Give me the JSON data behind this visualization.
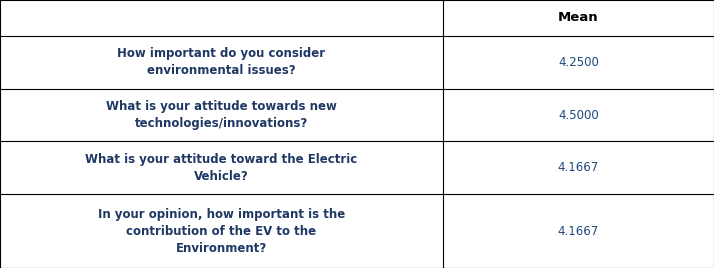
{
  "col_header": "Mean",
  "rows": [
    {
      "question": "How important do you consider\nenvironmental issues?",
      "mean": "4.2500"
    },
    {
      "question": "What is your attitude towards new\ntechnologies/innovations?",
      "mean": "4.5000"
    },
    {
      "question": "What is your attitude toward the Electric\nVehicle?",
      "mean": "4.1667"
    },
    {
      "question": "In your opinion, how important is the\ncontribution of the EV to the\nEnvironment?",
      "mean": "4.1667"
    }
  ],
  "col_split": 0.62,
  "text_color_question": "#1F3864",
  "text_color_mean": "#1F497D",
  "header_text_color": "#000000",
  "border_color": "#000000",
  "background_color": "#FFFFFF",
  "font_size_question": 8.5,
  "font_size_mean": 8.5,
  "font_size_header": 9.5,
  "row_heights_raw": [
    0.68,
    1.0,
    1.0,
    1.0,
    1.4
  ]
}
